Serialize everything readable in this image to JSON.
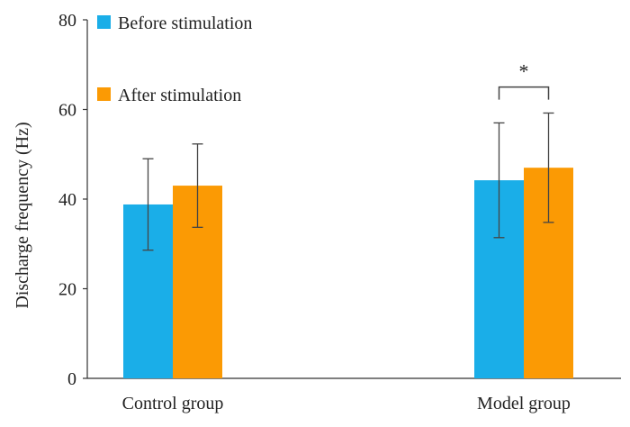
{
  "chart_data": {
    "type": "bar",
    "title": "",
    "xlabel": "",
    "ylabel": "Discharge frequency (Hz)",
    "ylim": [
      0,
      80
    ],
    "yticks": [
      0,
      20,
      40,
      60,
      80
    ],
    "grid": false,
    "legend_position": "top-left",
    "categories": [
      "Control group",
      "Model group"
    ],
    "series": [
      {
        "name": "Before stimulation",
        "color": "#1aaee8",
        "values": [
          38.8,
          44.2
        ],
        "error": [
          10.2,
          12.8
        ]
      },
      {
        "name": "After stimulation",
        "color": "#fb9a04",
        "values": [
          43.0,
          47.0
        ],
        "error": [
          9.3,
          12.2
        ]
      }
    ],
    "annotations": [
      {
        "text": "*",
        "category": "Model group",
        "bracket_height": 65
      }
    ]
  }
}
